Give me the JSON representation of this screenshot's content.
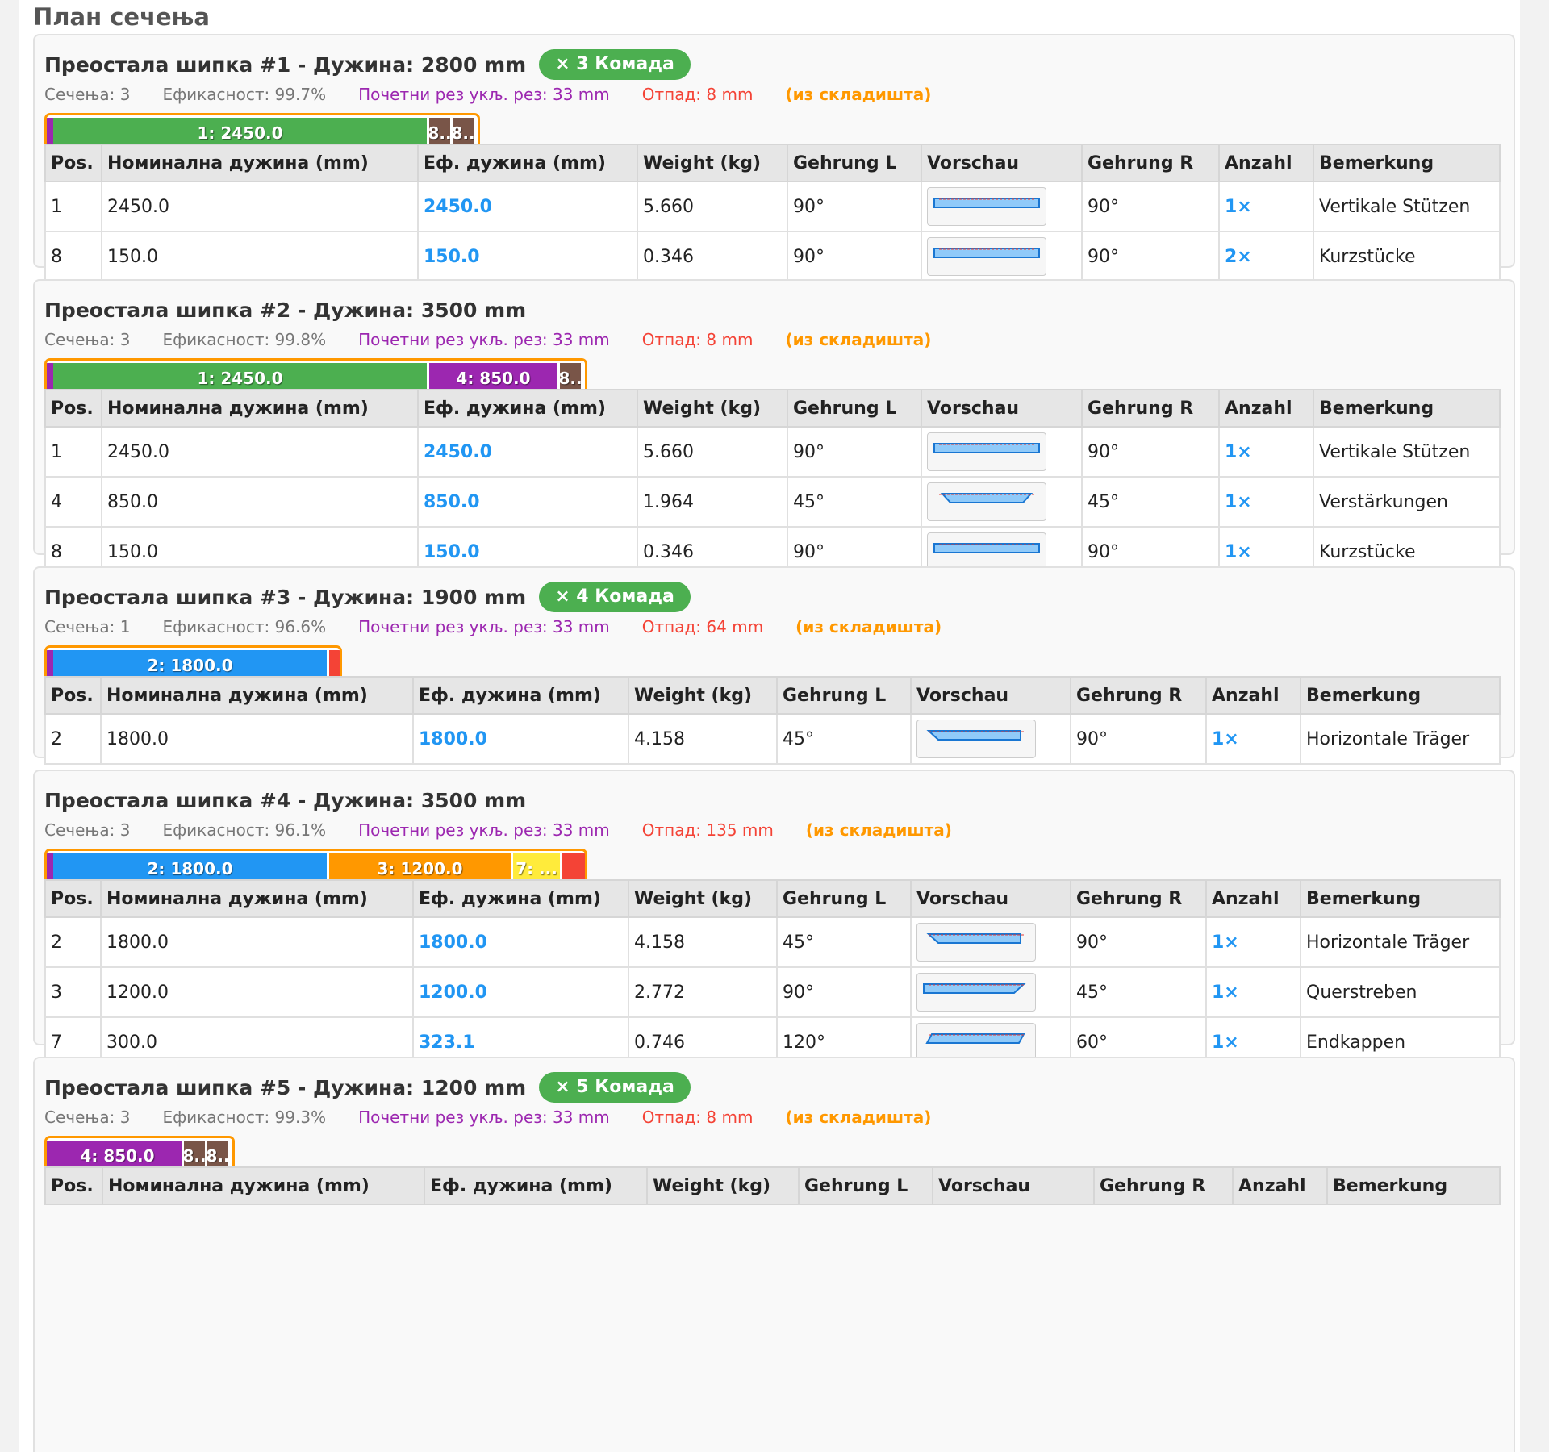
{
  "page": {
    "title": "План сечења"
  },
  "columns": [
    "Pos.",
    "Номинална дужина (mm)",
    "Еф. дужина (mm)",
    "Weight (kg)",
    "Gehrung L",
    "Vorschau",
    "Gehrung R",
    "Anzahl",
    "Bemerkung"
  ],
  "colors": {
    "start_cut": "#9c27b0",
    "bar_border": "#ff9800",
    "waste": "#f44336",
    "pos1": "#4caf50",
    "pos2": "#2196f3",
    "pos3": "#ff9800",
    "pos4": "#9c27b0",
    "pos7": "#ffeb3b",
    "pos8": "#795548",
    "badge": "#4caf50",
    "accent": "#2196f3"
  },
  "stocks": [
    {
      "title": "Преостала шипка #1 - Дужина: 2800 mm",
      "badge": "× 3 Комада",
      "stock_length": 2800,
      "stats": {
        "cuts": "Сечења: 3",
        "efficiency": "Ефикасност: 99.7%",
        "initial": "Почетни рез укљ. рез: 33 mm",
        "waste": "Отпад: 8 mm",
        "source": "(из складишта)"
      },
      "segments": [
        {
          "label": "1: 2450.0",
          "length": 2450,
          "color_key": "pos1"
        },
        {
          "label": "8..",
          "length": 150,
          "color_key": "pos8"
        },
        {
          "label": "8..",
          "length": 150,
          "color_key": "pos8"
        }
      ],
      "rows": [
        {
          "pos": "1",
          "nominal": "2450.0",
          "effective": "2450.0",
          "weight": "5.660",
          "miter_l": "90°",
          "miter_r": "90°",
          "qty": "1×",
          "note": "Vertikale Stützen",
          "preview": "rect"
        },
        {
          "pos": "8",
          "nominal": "150.0",
          "effective": "150.0",
          "weight": "0.346",
          "miter_l": "90°",
          "miter_r": "90°",
          "qty": "2×",
          "note": "Kurzstücke",
          "preview": "rect"
        }
      ]
    },
    {
      "title": "Преостала шипка #2 - Дужина: 3500 mm",
      "badge": "",
      "stock_length": 3500,
      "stats": {
        "cuts": "Сечења: 3",
        "efficiency": "Ефикасност: 99.8%",
        "initial": "Почетни рез укљ. рез: 33 mm",
        "waste": "Отпад: 8 mm",
        "source": "(из складишта)"
      },
      "segments": [
        {
          "label": "1: 2450.0",
          "length": 2450,
          "color_key": "pos1"
        },
        {
          "label": "4: 850.0",
          "length": 850,
          "color_key": "pos4"
        },
        {
          "label": "8..",
          "length": 150,
          "color_key": "pos8"
        }
      ],
      "rows": [
        {
          "pos": "1",
          "nominal": "2450.0",
          "effective": "2450.0",
          "weight": "5.660",
          "miter_l": "90°",
          "miter_r": "90°",
          "qty": "1×",
          "note": "Vertikale Stützen",
          "preview": "rect"
        },
        {
          "pos": "4",
          "nominal": "850.0",
          "effective": "850.0",
          "weight": "1.964",
          "miter_l": "45°",
          "miter_r": "45°",
          "qty": "1×",
          "note": "Verstärkungen",
          "preview": "both45"
        },
        {
          "pos": "8",
          "nominal": "150.0",
          "effective": "150.0",
          "weight": "0.346",
          "miter_l": "90°",
          "miter_r": "90°",
          "qty": "1×",
          "note": "Kurzstücke",
          "preview": "rect"
        }
      ]
    },
    {
      "title": "Преостала шипка #3 - Дужина: 1900 mm",
      "badge": "× 4 Комада",
      "stock_length": 1900,
      "stats": {
        "cuts": "Сечења: 1",
        "efficiency": "Ефикасност: 96.6%",
        "initial": "Почетни рез укљ. рез: 33 mm",
        "waste": "Отпад: 64 mm",
        "source": "(из складишта)"
      },
      "segments": [
        {
          "label": "2: 1800.0",
          "length": 1800,
          "color_key": "pos2"
        }
      ],
      "rows": [
        {
          "pos": "2",
          "nominal": "1800.0",
          "effective": "1800.0",
          "weight": "4.158",
          "miter_l": "45°",
          "miter_r": "90°",
          "qty": "1×",
          "note": "Horizontale Träger",
          "preview": "left45"
        }
      ]
    },
    {
      "title": "Преостала шипка #4 - Дужина: 3500 mm",
      "badge": "",
      "stock_length": 3500,
      "stats": {
        "cuts": "Сечења: 3",
        "efficiency": "Ефикасност: 96.1%",
        "initial": "Почетни рез укљ. рез: 33 mm",
        "waste": "Отпад: 135 mm",
        "source": "(из складишта)"
      },
      "segments": [
        {
          "label": "2: 1800.0",
          "length": 1800,
          "color_key": "pos2"
        },
        {
          "label": "3: 1200.0",
          "length": 1200,
          "color_key": "pos3"
        },
        {
          "label": "7: ...",
          "length": 323.1,
          "color_key": "pos7"
        }
      ],
      "rows": [
        {
          "pos": "2",
          "nominal": "1800.0",
          "effective": "1800.0",
          "weight": "4.158",
          "miter_l": "45°",
          "miter_r": "90°",
          "qty": "1×",
          "note": "Horizontale Träger",
          "preview": "left45"
        },
        {
          "pos": "3",
          "nominal": "1200.0",
          "effective": "1200.0",
          "weight": "2.772",
          "miter_l": "90°",
          "miter_r": "45°",
          "qty": "1×",
          "note": "Querstreben",
          "preview": "right45"
        },
        {
          "pos": "7",
          "nominal": "300.0",
          "effective": "323.1",
          "weight": "0.746",
          "miter_l": "120°",
          "miter_r": "60°",
          "qty": "1×",
          "note": "Endkappen",
          "preview": "para"
        }
      ]
    },
    {
      "title": "Преостала шипка #5 - Дужина: 1200 mm",
      "badge": "× 5 Комада",
      "stock_length": 1200,
      "stats": {
        "cuts": "Сечења: 3",
        "efficiency": "Ефикасност: 99.3%",
        "initial": "Почетни рез укљ. рез: 33 mm",
        "waste": "Отпад: 8 mm",
        "source": "(из складишта)"
      },
      "segments": [
        {
          "label": "4: 850.0",
          "length": 850,
          "color_key": "pos4"
        },
        {
          "label": "8..",
          "length": 150,
          "color_key": "pos8"
        },
        {
          "label": "8..",
          "length": 150,
          "color_key": "pos8"
        }
      ],
      "rows": []
    }
  ]
}
